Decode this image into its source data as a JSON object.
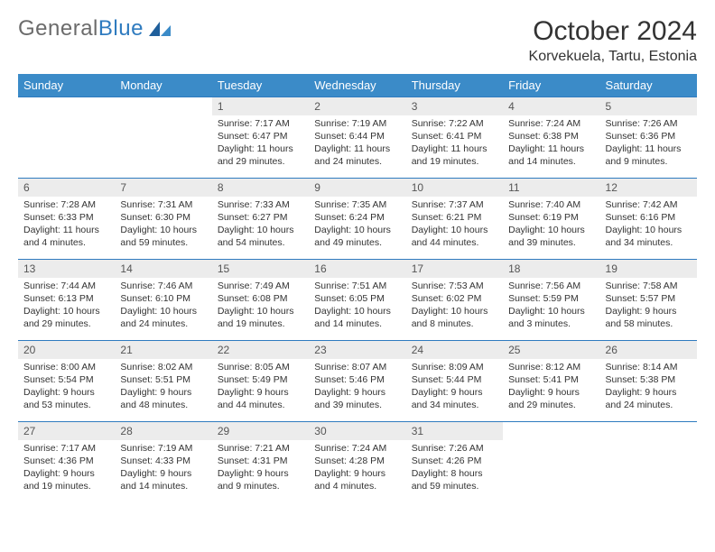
{
  "logo": {
    "text_general": "General",
    "text_blue": "Blue"
  },
  "header": {
    "month": "October 2024",
    "location": "Korvekuela, Tartu, Estonia"
  },
  "colors": {
    "header_bg": "#3b8bc8",
    "header_text": "#ffffff",
    "daynum_bg": "#ececec",
    "rule": "#2f7bbf",
    "logo_gray": "#6b6b6b",
    "logo_blue": "#2f7bbf",
    "body_text": "#333333",
    "background": "#ffffff"
  },
  "day_headers": [
    "Sunday",
    "Monday",
    "Tuesday",
    "Wednesday",
    "Thursday",
    "Friday",
    "Saturday"
  ],
  "weeks": [
    [
      null,
      null,
      {
        "num": "1",
        "sunrise": "Sunrise: 7:17 AM",
        "sunset": "Sunset: 6:47 PM",
        "daylight": "Daylight: 11 hours and 29 minutes."
      },
      {
        "num": "2",
        "sunrise": "Sunrise: 7:19 AM",
        "sunset": "Sunset: 6:44 PM",
        "daylight": "Daylight: 11 hours and 24 minutes."
      },
      {
        "num": "3",
        "sunrise": "Sunrise: 7:22 AM",
        "sunset": "Sunset: 6:41 PM",
        "daylight": "Daylight: 11 hours and 19 minutes."
      },
      {
        "num": "4",
        "sunrise": "Sunrise: 7:24 AM",
        "sunset": "Sunset: 6:38 PM",
        "daylight": "Daylight: 11 hours and 14 minutes."
      },
      {
        "num": "5",
        "sunrise": "Sunrise: 7:26 AM",
        "sunset": "Sunset: 6:36 PM",
        "daylight": "Daylight: 11 hours and 9 minutes."
      }
    ],
    [
      {
        "num": "6",
        "sunrise": "Sunrise: 7:28 AM",
        "sunset": "Sunset: 6:33 PM",
        "daylight": "Daylight: 11 hours and 4 minutes."
      },
      {
        "num": "7",
        "sunrise": "Sunrise: 7:31 AM",
        "sunset": "Sunset: 6:30 PM",
        "daylight": "Daylight: 10 hours and 59 minutes."
      },
      {
        "num": "8",
        "sunrise": "Sunrise: 7:33 AM",
        "sunset": "Sunset: 6:27 PM",
        "daylight": "Daylight: 10 hours and 54 minutes."
      },
      {
        "num": "9",
        "sunrise": "Sunrise: 7:35 AM",
        "sunset": "Sunset: 6:24 PM",
        "daylight": "Daylight: 10 hours and 49 minutes."
      },
      {
        "num": "10",
        "sunrise": "Sunrise: 7:37 AM",
        "sunset": "Sunset: 6:21 PM",
        "daylight": "Daylight: 10 hours and 44 minutes."
      },
      {
        "num": "11",
        "sunrise": "Sunrise: 7:40 AM",
        "sunset": "Sunset: 6:19 PM",
        "daylight": "Daylight: 10 hours and 39 minutes."
      },
      {
        "num": "12",
        "sunrise": "Sunrise: 7:42 AM",
        "sunset": "Sunset: 6:16 PM",
        "daylight": "Daylight: 10 hours and 34 minutes."
      }
    ],
    [
      {
        "num": "13",
        "sunrise": "Sunrise: 7:44 AM",
        "sunset": "Sunset: 6:13 PM",
        "daylight": "Daylight: 10 hours and 29 minutes."
      },
      {
        "num": "14",
        "sunrise": "Sunrise: 7:46 AM",
        "sunset": "Sunset: 6:10 PM",
        "daylight": "Daylight: 10 hours and 24 minutes."
      },
      {
        "num": "15",
        "sunrise": "Sunrise: 7:49 AM",
        "sunset": "Sunset: 6:08 PM",
        "daylight": "Daylight: 10 hours and 19 minutes."
      },
      {
        "num": "16",
        "sunrise": "Sunrise: 7:51 AM",
        "sunset": "Sunset: 6:05 PM",
        "daylight": "Daylight: 10 hours and 14 minutes."
      },
      {
        "num": "17",
        "sunrise": "Sunrise: 7:53 AM",
        "sunset": "Sunset: 6:02 PM",
        "daylight": "Daylight: 10 hours and 8 minutes."
      },
      {
        "num": "18",
        "sunrise": "Sunrise: 7:56 AM",
        "sunset": "Sunset: 5:59 PM",
        "daylight": "Daylight: 10 hours and 3 minutes."
      },
      {
        "num": "19",
        "sunrise": "Sunrise: 7:58 AM",
        "sunset": "Sunset: 5:57 PM",
        "daylight": "Daylight: 9 hours and 58 minutes."
      }
    ],
    [
      {
        "num": "20",
        "sunrise": "Sunrise: 8:00 AM",
        "sunset": "Sunset: 5:54 PM",
        "daylight": "Daylight: 9 hours and 53 minutes."
      },
      {
        "num": "21",
        "sunrise": "Sunrise: 8:02 AM",
        "sunset": "Sunset: 5:51 PM",
        "daylight": "Daylight: 9 hours and 48 minutes."
      },
      {
        "num": "22",
        "sunrise": "Sunrise: 8:05 AM",
        "sunset": "Sunset: 5:49 PM",
        "daylight": "Daylight: 9 hours and 44 minutes."
      },
      {
        "num": "23",
        "sunrise": "Sunrise: 8:07 AM",
        "sunset": "Sunset: 5:46 PM",
        "daylight": "Daylight: 9 hours and 39 minutes."
      },
      {
        "num": "24",
        "sunrise": "Sunrise: 8:09 AM",
        "sunset": "Sunset: 5:44 PM",
        "daylight": "Daylight: 9 hours and 34 minutes."
      },
      {
        "num": "25",
        "sunrise": "Sunrise: 8:12 AM",
        "sunset": "Sunset: 5:41 PM",
        "daylight": "Daylight: 9 hours and 29 minutes."
      },
      {
        "num": "26",
        "sunrise": "Sunrise: 8:14 AM",
        "sunset": "Sunset: 5:38 PM",
        "daylight": "Daylight: 9 hours and 24 minutes."
      }
    ],
    [
      {
        "num": "27",
        "sunrise": "Sunrise: 7:17 AM",
        "sunset": "Sunset: 4:36 PM",
        "daylight": "Daylight: 9 hours and 19 minutes."
      },
      {
        "num": "28",
        "sunrise": "Sunrise: 7:19 AM",
        "sunset": "Sunset: 4:33 PM",
        "daylight": "Daylight: 9 hours and 14 minutes."
      },
      {
        "num": "29",
        "sunrise": "Sunrise: 7:21 AM",
        "sunset": "Sunset: 4:31 PM",
        "daylight": "Daylight: 9 hours and 9 minutes."
      },
      {
        "num": "30",
        "sunrise": "Sunrise: 7:24 AM",
        "sunset": "Sunset: 4:28 PM",
        "daylight": "Daylight: 9 hours and 4 minutes."
      },
      {
        "num": "31",
        "sunrise": "Sunrise: 7:26 AM",
        "sunset": "Sunset: 4:26 PM",
        "daylight": "Daylight: 8 hours and 59 minutes."
      },
      null,
      null
    ]
  ]
}
